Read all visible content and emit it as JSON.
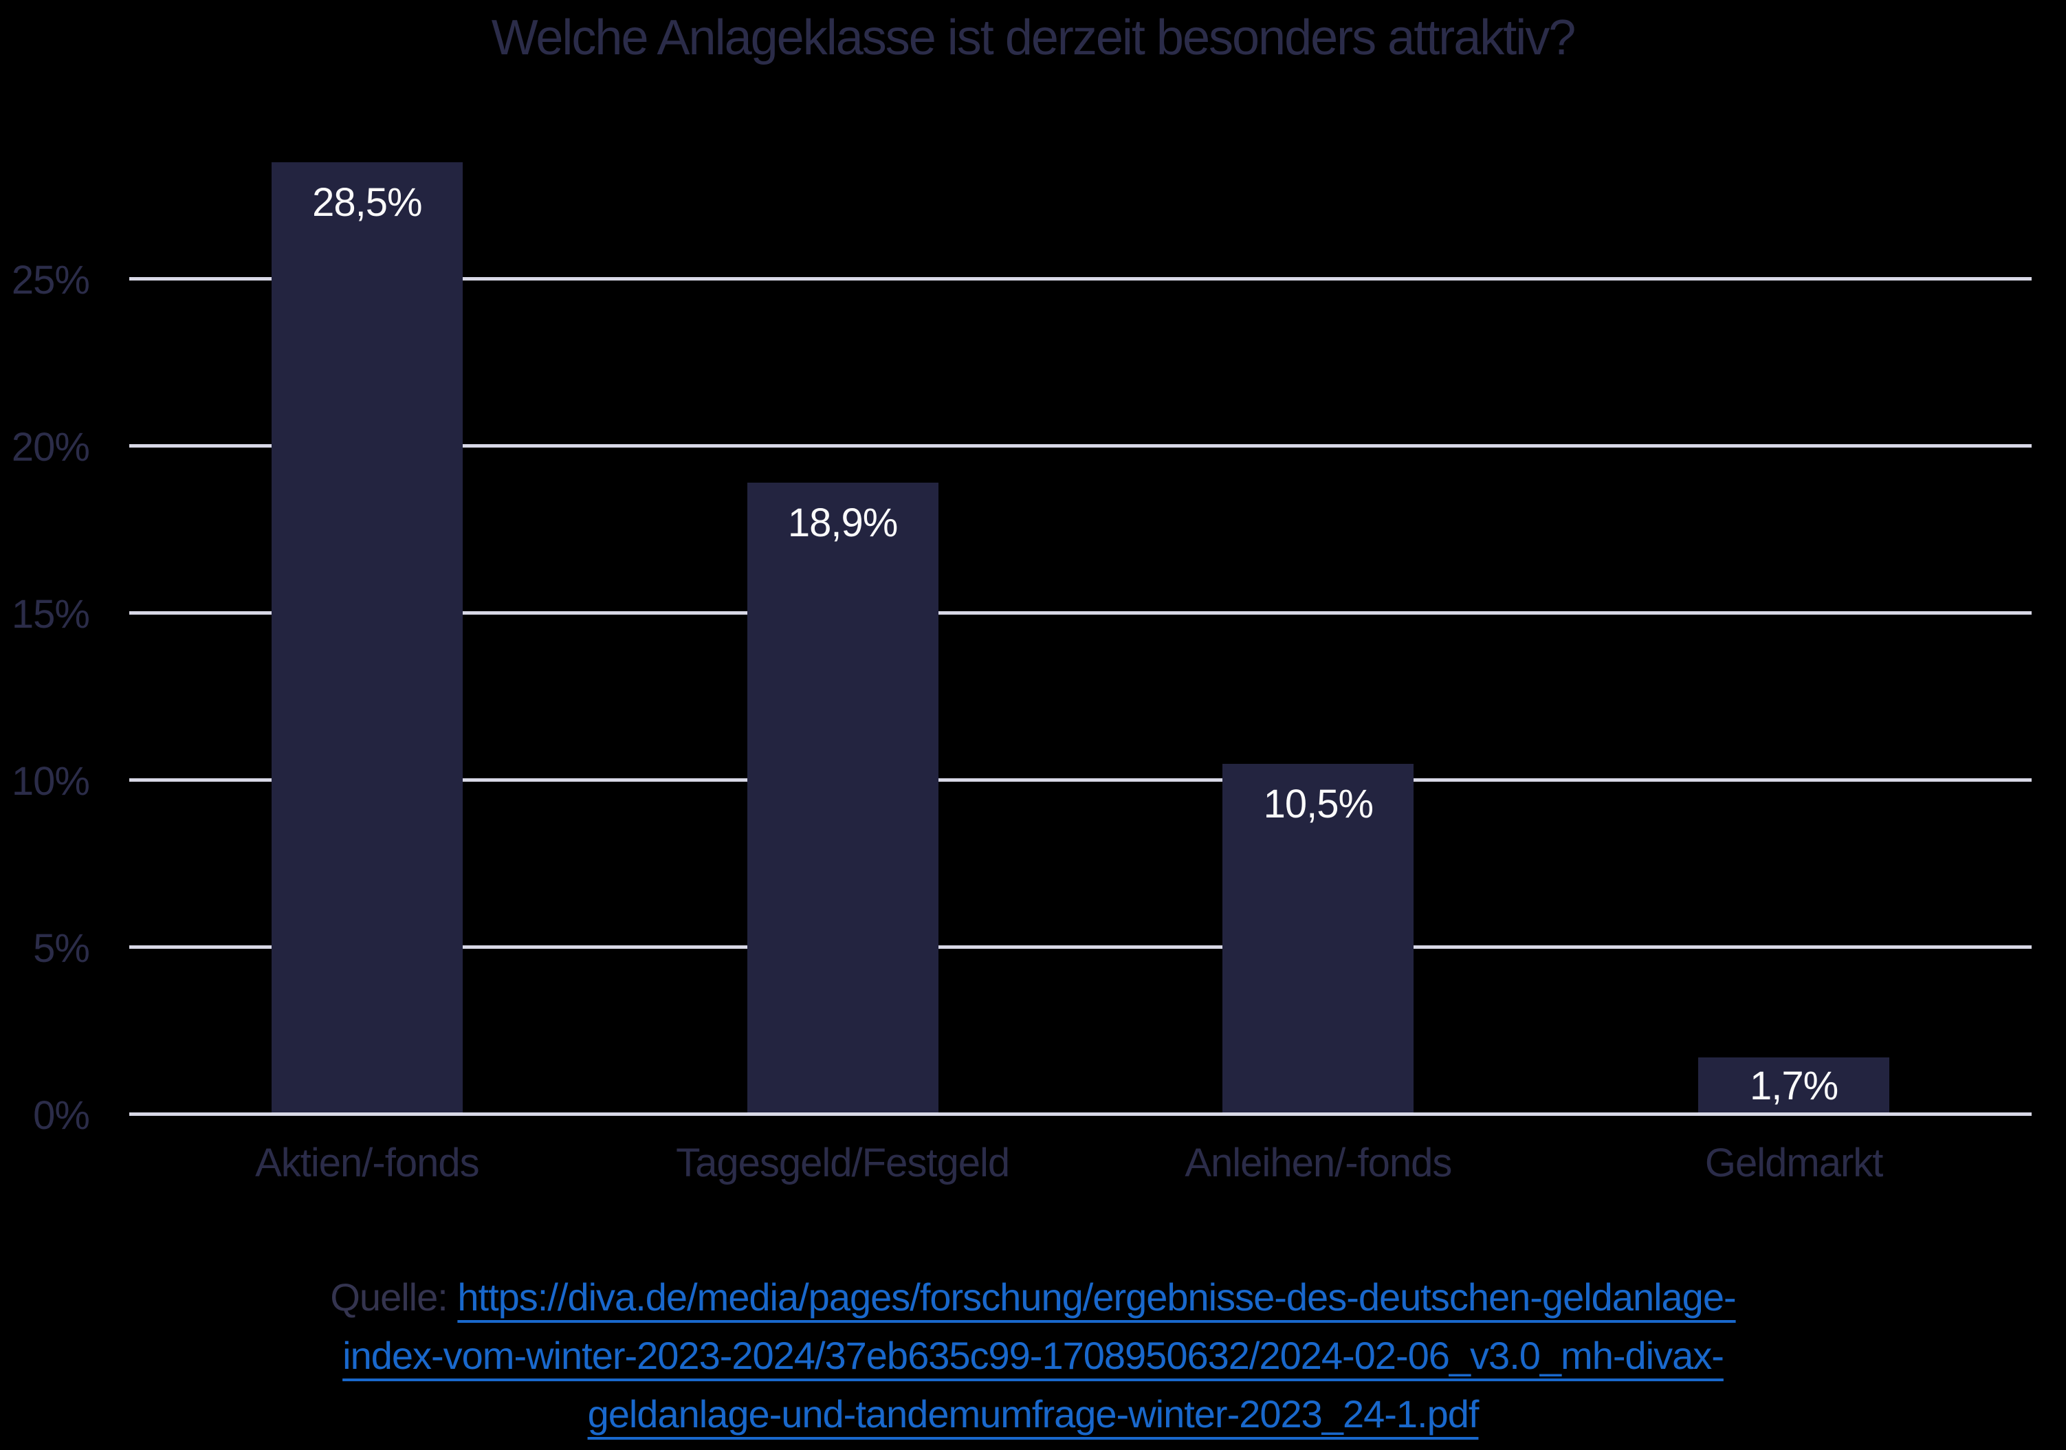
{
  "title": "Welche Anlageklasse ist derzeit besonders attraktiv?",
  "source": {
    "prefix": "Quelle: ",
    "url": "https://diva.de/media/pages/forschung/ergebnisse-des-deutschen-geldanlage-index-vom-winter-2023-2024/37eb635c99-1708950632/2024-02-06_v3.0_mh-divax-geldanlage-und-tandemumfrage-winter-2023_24-1.pdf",
    "url_lines": [
      "https://diva.de/media/pages/forschung/ergebnisse-des-deutschen-geldanlage-",
      "index-vom-winter-2023-2024/37eb635c99-1708950632/2024-02-06_v3.0_mh-divax-",
      "geldanlage-und-tandemumfrage-winter-2023_24-1.pdf"
    ]
  },
  "chart_data": {
    "type": "bar",
    "title": "Welche Anlageklasse ist derzeit besonders attraktiv?",
    "categories": [
      "Aktien/-fonds",
      "Tagesgeld/Festgeld",
      "Anleihen/-fonds",
      "Geldmarkt"
    ],
    "values": [
      28.5,
      18.9,
      10.5,
      1.7
    ],
    "value_labels": [
      "28,5%",
      "18,9%",
      "10,5%",
      "1,7%"
    ],
    "xlabel": "",
    "ylabel": "",
    "ylim": [
      0,
      30
    ],
    "yticks": [
      0,
      5,
      10,
      15,
      20,
      25
    ],
    "ytick_labels": [
      "0%",
      "5%",
      "10%",
      "15%",
      "20%",
      "25%"
    ],
    "grid": true,
    "legend": false,
    "colors": {
      "background": "#000000",
      "bar": "#232440",
      "gridline": "#d8d8e6",
      "axis_text": "#2b2c49",
      "value_label": "#fafafa",
      "source_text": "#34344f",
      "link": "#1968cc"
    }
  }
}
